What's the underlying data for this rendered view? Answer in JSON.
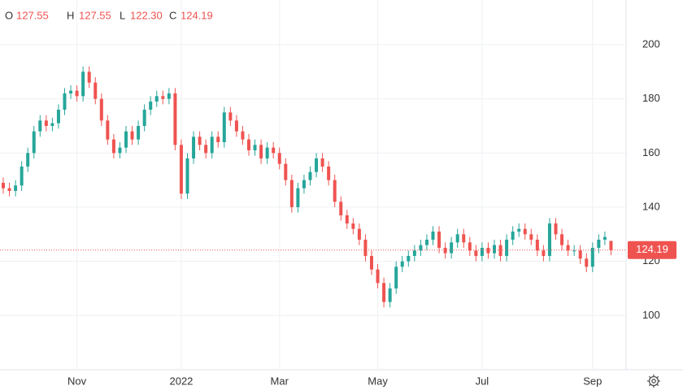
{
  "chart_data": {
    "type": "candlestick",
    "ohlc_letters": [
      "O",
      "H",
      "L",
      "C"
    ],
    "last_labels": [
      "127.55",
      "127.55",
      "122.30",
      "124.19"
    ],
    "categories": [
      null,
      null,
      null,
      null,
      null,
      null,
      null,
      null,
      null,
      null,
      null,
      null,
      "Nov",
      null,
      null,
      null,
      null,
      null,
      null,
      null,
      null,
      null,
      null,
      null,
      null,
      null,
      null,
      null,
      null,
      "2022",
      null,
      null,
      null,
      null,
      null,
      null,
      null,
      null,
      null,
      null,
      null,
      null,
      null,
      null,
      null,
      "Mar",
      null,
      null,
      null,
      null,
      null,
      null,
      null,
      null,
      null,
      null,
      null,
      null,
      null,
      null,
      null,
      "May",
      null,
      null,
      null,
      null,
      null,
      null,
      null,
      null,
      null,
      null,
      null,
      null,
      null,
      null,
      null,
      null,
      "Jul",
      null,
      null,
      null,
      null,
      null,
      null,
      null,
      null,
      null,
      null,
      null,
      null,
      null,
      null,
      null,
      null,
      null,
      "Sep",
      null,
      null,
      null
    ],
    "open": [
      149,
      147,
      146,
      148,
      155,
      160,
      168,
      172,
      170,
      171,
      176,
      182,
      183,
      181,
      190,
      186,
      180,
      172,
      165,
      160,
      162,
      168,
      165,
      170,
      176,
      179,
      181,
      180,
      182,
      163,
      145,
      158,
      166,
      163,
      160,
      166,
      164,
      175,
      172,
      168,
      165,
      161,
      163,
      158,
      162,
      160,
      156,
      150,
      140,
      147,
      150,
      153,
      158,
      155,
      150,
      142,
      137,
      134,
      132,
      128,
      122,
      117,
      112,
      105,
      110,
      118,
      120,
      122,
      124,
      126,
      128,
      131,
      125,
      123,
      127,
      130,
      127,
      124,
      122,
      125,
      123,
      126,
      122,
      128,
      131,
      132,
      130,
      128,
      124,
      122,
      134,
      130,
      126,
      124,
      124,
      121,
      118,
      125,
      128,
      127.55
    ],
    "high": [
      151,
      149,
      150,
      157,
      162,
      170,
      174,
      174,
      173,
      178,
      184,
      185,
      185,
      192,
      192,
      188,
      182,
      174,
      167,
      164,
      170,
      170,
      172,
      178,
      181,
      183,
      183,
      184,
      184,
      165,
      160,
      168,
      168,
      165,
      168,
      168,
      177,
      177,
      174,
      170,
      167,
      165,
      165,
      164,
      164,
      162,
      158,
      152,
      149,
      152,
      155,
      160,
      160,
      157,
      152,
      144,
      139,
      136,
      134,
      130,
      124,
      119,
      114,
      112,
      120,
      122,
      124,
      126,
      128,
      130,
      133,
      133,
      127,
      129,
      132,
      132,
      129,
      126,
      127,
      127,
      128,
      128,
      130,
      133,
      134,
      134,
      132,
      130,
      126,
      136,
      136,
      132,
      128,
      126,
      126,
      123,
      127,
      130,
      131,
      127.55
    ],
    "low": [
      145,
      144,
      144,
      146,
      153,
      158,
      166,
      168,
      168,
      169,
      174,
      180,
      179,
      179,
      184,
      178,
      170,
      163,
      158,
      158,
      160,
      163,
      163,
      168,
      174,
      177,
      178,
      178,
      161,
      143,
      143,
      156,
      161,
      158,
      158,
      162,
      162,
      170,
      166,
      163,
      159,
      159,
      156,
      156,
      158,
      154,
      148,
      138,
      138,
      145,
      148,
      151,
      153,
      148,
      140,
      135,
      132,
      130,
      126,
      120,
      115,
      110,
      103,
      103,
      108,
      116,
      118,
      120,
      122,
      124,
      126,
      123,
      121,
      121,
      125,
      125,
      122,
      120,
      120,
      121,
      121,
      120,
      120,
      126,
      129,
      128,
      126,
      122,
      120,
      120,
      128,
      124,
      122,
      122,
      119,
      116,
      116,
      123,
      126,
      122.3
    ],
    "close": [
      147,
      146,
      148,
      155,
      160,
      168,
      172,
      170,
      171,
      176,
      182,
      183,
      181,
      190,
      186,
      180,
      172,
      165,
      160,
      162,
      168,
      165,
      170,
      176,
      179,
      181,
      180,
      182,
      163,
      145,
      158,
      166,
      163,
      160,
      166,
      164,
      175,
      172,
      168,
      165,
      161,
      163,
      158,
      162,
      160,
      156,
      150,
      140,
      147,
      150,
      153,
      158,
      155,
      150,
      142,
      137,
      134,
      132,
      128,
      122,
      117,
      112,
      105,
      110,
      118,
      120,
      122,
      124,
      126,
      128,
      131,
      125,
      123,
      127,
      130,
      127,
      124,
      122,
      125,
      123,
      126,
      122,
      128,
      131,
      132,
      130,
      128,
      124,
      122,
      134,
      130,
      126,
      124,
      124,
      121,
      118,
      125,
      128,
      129,
      124.19
    ],
    "up_color": "#26a69a",
    "down_color": "#ef5350",
    "ylim": [
      80,
      216.5
    ],
    "yticks": [
      100,
      120,
      140,
      160,
      180,
      200
    ],
    "grid": true
  }
}
